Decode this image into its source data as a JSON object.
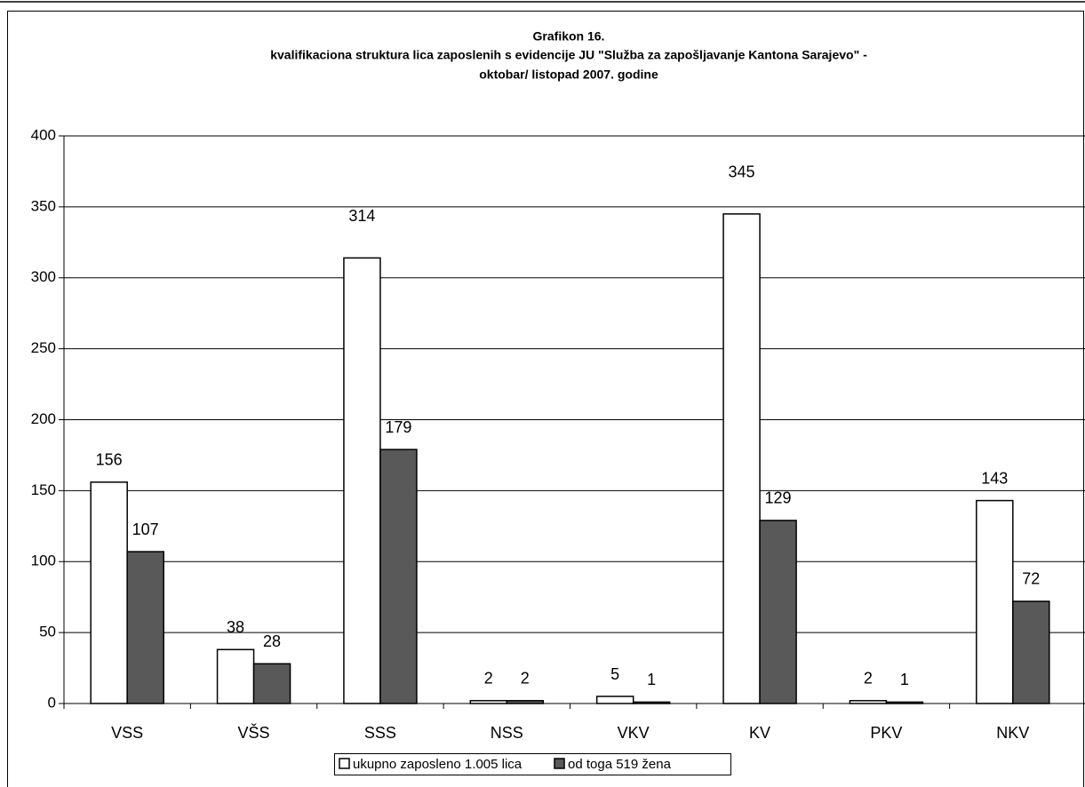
{
  "chart_data": {
    "type": "bar",
    "title": "Grafikon 16.",
    "subtitle": [
      "kvalifikaciona struktura lica zaposlenih s evidencije JU \"Služba za zapošljavanje Kantona Sarajevo\" -",
      "oktobar/ listopad 2007. godine"
    ],
    "categories": [
      "VSS",
      "VŠS",
      "SSS",
      "NSS",
      "VKV",
      "KV",
      "PKV",
      "NKV"
    ],
    "series": [
      {
        "name": "ukupno zaposleno 1.005 lica",
        "color": "#ffffff",
        "values": [
          156,
          38,
          314,
          2,
          5,
          345,
          2,
          143
        ]
      },
      {
        "name": "od toga 519 žena",
        "color": "#595959",
        "values": [
          107,
          28,
          179,
          2,
          1,
          129,
          1,
          72
        ]
      }
    ],
    "ylim": [
      0,
      400
    ],
    "yticks": [
      0,
      50,
      100,
      150,
      200,
      250,
      300,
      350,
      400
    ],
    "grid": true,
    "legend": "bottom"
  }
}
